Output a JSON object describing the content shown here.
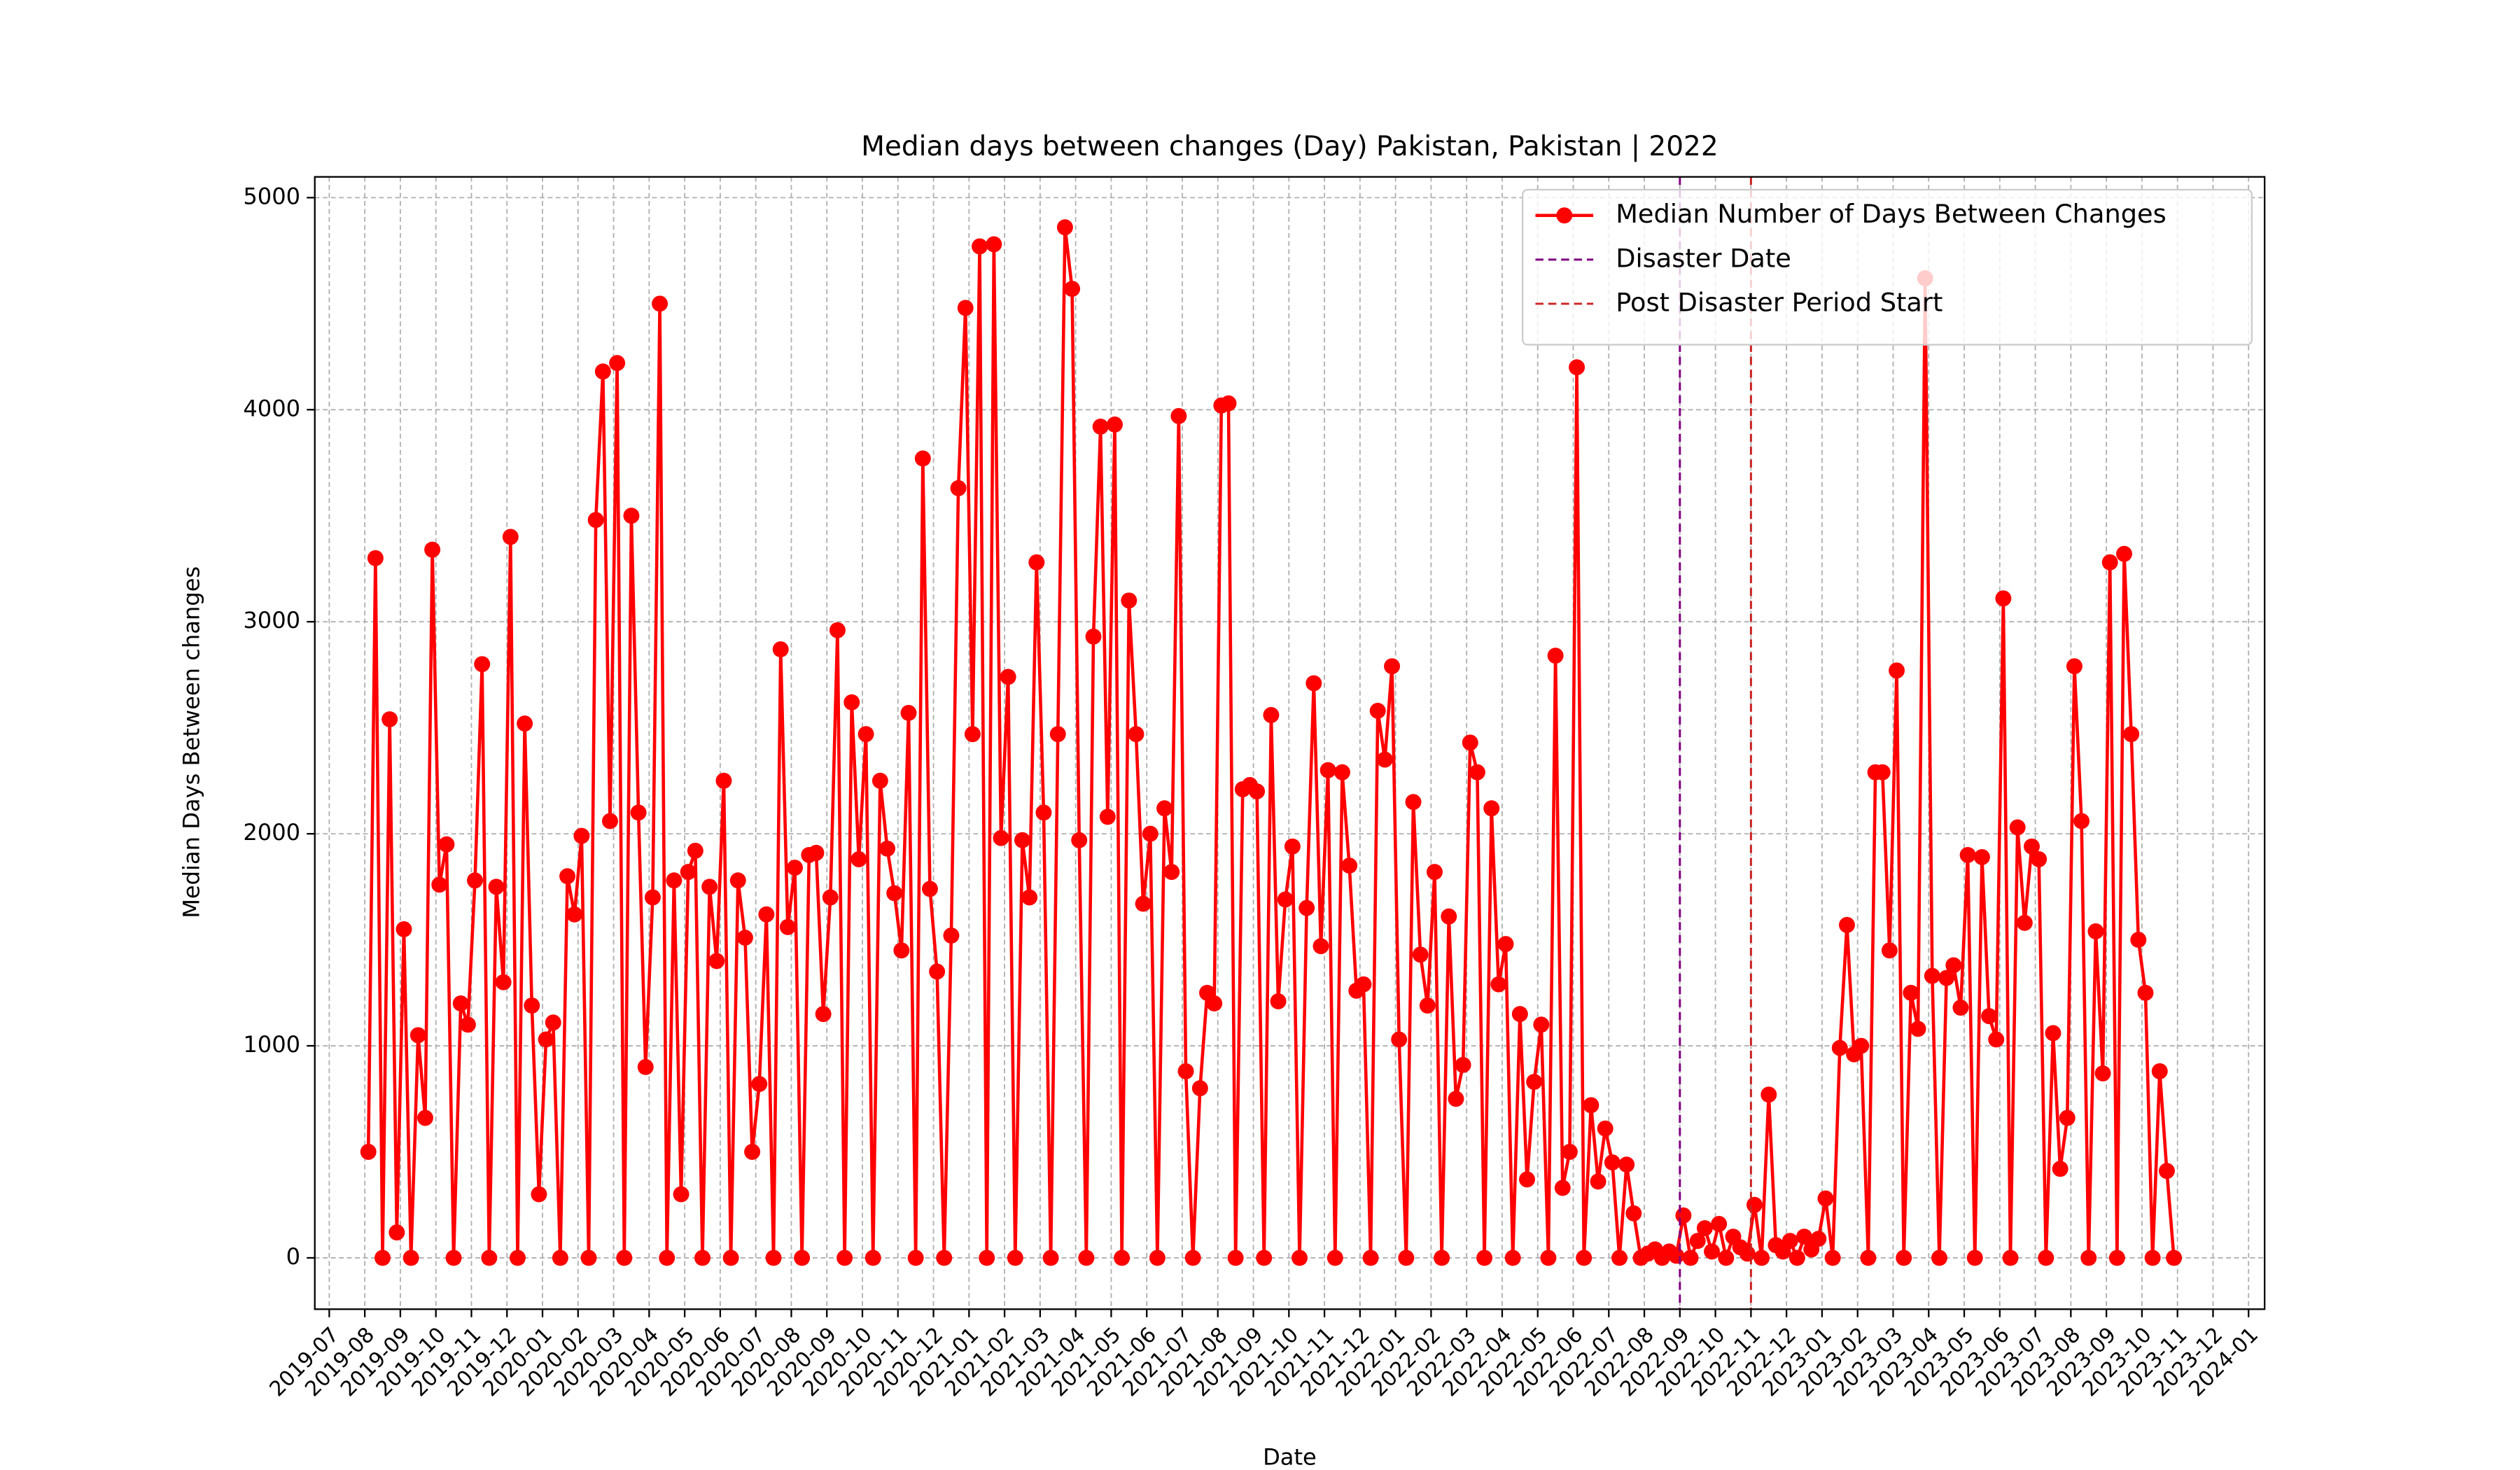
{
  "chart_data": {
    "type": "line",
    "title": "Median days between changes (Day) Pakistan, Pakistan | 2022",
    "x_label": "Date",
    "y_label": "Median Days Between changes",
    "x": [
      "2019-08",
      "2019-08",
      "2019-08",
      "2019-08",
      "2019-08",
      "2019-09",
      "2019-09",
      "2019-09",
      "2019-09",
      "2019-09",
      "2019-10",
      "2019-10",
      "2019-10",
      "2019-10",
      "2019-10",
      "2019-11",
      "2019-11",
      "2019-11",
      "2019-11",
      "2019-11",
      "2019-12",
      "2019-12",
      "2019-12",
      "2019-12",
      "2019-12",
      "2020-01",
      "2020-01",
      "2020-01",
      "2020-01",
      "2020-01",
      "2020-02",
      "2020-02",
      "2020-02",
      "2020-02",
      "2020-02",
      "2020-03",
      "2020-03",
      "2020-03",
      "2020-03",
      "2020-03",
      "2020-04",
      "2020-04",
      "2020-04",
      "2020-04",
      "2020-04",
      "2020-05",
      "2020-05",
      "2020-05",
      "2020-05",
      "2020-05",
      "2020-06",
      "2020-06",
      "2020-06",
      "2020-06",
      "2020-06",
      "2020-07",
      "2020-07",
      "2020-07",
      "2020-07",
      "2020-07",
      "2020-08",
      "2020-08",
      "2020-08",
      "2020-08",
      "2020-08",
      "2020-09",
      "2020-09",
      "2020-09",
      "2020-09",
      "2020-09",
      "2020-10",
      "2020-10",
      "2020-10",
      "2020-10",
      "2020-10",
      "2020-11",
      "2020-11",
      "2020-11",
      "2020-11",
      "2020-11",
      "2020-12",
      "2020-12",
      "2020-12",
      "2020-12",
      "2020-12",
      "2021-01",
      "2021-01",
      "2021-01",
      "2021-01",
      "2021-01",
      "2021-02",
      "2021-02",
      "2021-02",
      "2021-02",
      "2021-02",
      "2021-03",
      "2021-03",
      "2021-03",
      "2021-03",
      "2021-03",
      "2021-04",
      "2021-04",
      "2021-04",
      "2021-04",
      "2021-04",
      "2021-05",
      "2021-05",
      "2021-05",
      "2021-05",
      "2021-05",
      "2021-06",
      "2021-06",
      "2021-06",
      "2021-06",
      "2021-06",
      "2021-07",
      "2021-07",
      "2021-07",
      "2021-07",
      "2021-07",
      "2021-08",
      "2021-08",
      "2021-08",
      "2021-08",
      "2021-08",
      "2021-09",
      "2021-09",
      "2021-09",
      "2021-09",
      "2021-09",
      "2021-10",
      "2021-10",
      "2021-10",
      "2021-10",
      "2021-10",
      "2021-11",
      "2021-11",
      "2021-11",
      "2021-11",
      "2021-11",
      "2021-12",
      "2021-12",
      "2021-12",
      "2021-12",
      "2021-12",
      "2022-01",
      "2022-01",
      "2022-01",
      "2022-01",
      "2022-01",
      "2022-02",
      "2022-02",
      "2022-02",
      "2022-02",
      "2022-02",
      "2022-03",
      "2022-03",
      "2022-03",
      "2022-03",
      "2022-03",
      "2022-04",
      "2022-04",
      "2022-04",
      "2022-04",
      "2022-04",
      "2022-05",
      "2022-05",
      "2022-05",
      "2022-05",
      "2022-05",
      "2022-06",
      "2022-06",
      "2022-06",
      "2022-06",
      "2022-06",
      "2022-07",
      "2022-07",
      "2022-07",
      "2022-07",
      "2022-07",
      "2022-08",
      "2022-08",
      "2022-08",
      "2022-08",
      "2022-08",
      "2022-09",
      "2022-09",
      "2022-09",
      "2022-09",
      "2022-09",
      "2022-10",
      "2022-10",
      "2022-10",
      "2022-10",
      "2022-10",
      "2022-11",
      "2022-11",
      "2022-11",
      "2022-11",
      "2022-11",
      "2022-12",
      "2022-12",
      "2022-12",
      "2022-12",
      "2022-12",
      "2023-01",
      "2023-01",
      "2023-01",
      "2023-01",
      "2023-01",
      "2023-02",
      "2023-02",
      "2023-02",
      "2023-02",
      "2023-02",
      "2023-03",
      "2023-03",
      "2023-03",
      "2023-03",
      "2023-03",
      "2023-04",
      "2023-04",
      "2023-04",
      "2023-04",
      "2023-04",
      "2023-05",
      "2023-05",
      "2023-05",
      "2023-05",
      "2023-05",
      "2023-06",
      "2023-06",
      "2023-06",
      "2023-06",
      "2023-06",
      "2023-07",
      "2023-07",
      "2023-07",
      "2023-07",
      "2023-07",
      "2023-08",
      "2023-08",
      "2023-08",
      "2023-08",
      "2023-08",
      "2023-09",
      "2023-09",
      "2023-09",
      "2023-09",
      "2023-09",
      "2023-10",
      "2023-10",
      "2023-10",
      "2023-10",
      "2023-10"
    ],
    "series": [
      {
        "name": "Median Number of Days Between Changes",
        "color": "#ff0000",
        "values": [
          500,
          3300,
          0,
          2540,
          120,
          1550,
          0,
          1050,
          660,
          3340,
          1760,
          1950,
          0,
          1200,
          1100,
          1780,
          2800,
          0,
          1750,
          1300,
          3400,
          0,
          2520,
          1190,
          300,
          1030,
          1110,
          0,
          1800,
          1620,
          1990,
          0,
          3480,
          4180,
          2060,
          4220,
          0,
          3500,
          2100,
          900,
          1700,
          4500,
          0,
          1780,
          300,
          1820,
          1920,
          0,
          1750,
          1400,
          2250,
          0,
          1780,
          1510,
          500,
          820,
          1620,
          0,
          2870,
          1560,
          1840,
          0,
          1900,
          1910,
          1150,
          1700,
          2960,
          0,
          2620,
          1880,
          2470,
          0,
          2250,
          1930,
          1720,
          1450,
          2570,
          0,
          3770,
          1740,
          1350,
          0,
          1520,
          3630,
          4480,
          2470,
          4770,
          0,
          4780,
          1980,
          2740,
          0,
          1970,
          1700,
          3280,
          2100,
          0,
          2470,
          4860,
          4570,
          1970,
          0,
          2930,
          3920,
          2080,
          3930,
          0,
          3100,
          2470,
          1670,
          2000,
          0,
          2120,
          1820,
          3970,
          880,
          0,
          800,
          1250,
          1200,
          4020,
          4030,
          0,
          2210,
          2230,
          2200,
          0,
          2560,
          1210,
          1690,
          1940,
          0,
          1650,
          2710,
          1470,
          2300,
          0,
          2290,
          1850,
          1260,
          1290,
          0,
          2580,
          2350,
          2790,
          1030,
          0,
          2150,
          1430,
          1190,
          1820,
          0,
          1610,
          750,
          910,
          2430,
          2290,
          0,
          2120,
          1290,
          1480,
          0,
          1150,
          370,
          830,
          1100,
          0,
          2840,
          330,
          500,
          4200,
          0,
          720,
          360,
          610,
          450,
          0,
          440,
          210,
          0,
          20,
          40,
          0,
          30,
          10,
          200,
          0,
          80,
          140,
          30,
          160,
          0,
          100,
          50,
          20,
          250,
          0,
          770,
          60,
          30,
          80,
          0,
          100,
          40,
          90,
          280,
          0,
          990,
          1570,
          960,
          1000,
          0,
          2290,
          2290,
          1450,
          2770,
          0,
          1250,
          1080,
          4620,
          1330,
          0,
          1320,
          1380,
          1180,
          1900,
          0,
          1890,
          1140,
          1030,
          3110,
          0,
          2030,
          1580,
          1940,
          1880,
          0,
          1060,
          420,
          660,
          2790,
          2060,
          0,
          1540,
          870,
          3280,
          0,
          3320,
          2470,
          1500,
          1250,
          0,
          880,
          410,
          0
        ]
      }
    ],
    "vlines": [
      {
        "name": "Disaster Date",
        "x": "2022-09",
        "color": "#800080"
      },
      {
        "name": "Post Disaster Period Start",
        "x": "2022-11",
        "color": "#cc2222"
      }
    ],
    "ylim": [
      -242,
      5098
    ],
    "yticks": [
      0,
      1000,
      2000,
      3000,
      4000,
      5000
    ],
    "xticks": [
      "2019-07",
      "2019-08",
      "2019-09",
      "2019-10",
      "2019-11",
      "2019-12",
      "2020-01",
      "2020-02",
      "2020-03",
      "2020-04",
      "2020-05",
      "2020-06",
      "2020-07",
      "2020-08",
      "2020-09",
      "2020-10",
      "2020-11",
      "2020-12",
      "2021-01",
      "2021-02",
      "2021-03",
      "2021-04",
      "2021-05",
      "2021-06",
      "2021-07",
      "2021-08",
      "2021-09",
      "2021-10",
      "2021-11",
      "2021-12",
      "2022-01",
      "2022-02",
      "2022-03",
      "2022-04",
      "2022-05",
      "2022-06",
      "2022-07",
      "2022-08",
      "2022-09",
      "2022-10",
      "2022-11",
      "2022-12",
      "2023-01",
      "2023-02",
      "2023-03",
      "2023-04",
      "2023-05",
      "2023-06",
      "2023-07",
      "2023-08",
      "2023-09",
      "2023-10",
      "2023-11",
      "2023-12",
      "2024-01"
    ],
    "grid": true,
    "legend": "upper right"
  }
}
